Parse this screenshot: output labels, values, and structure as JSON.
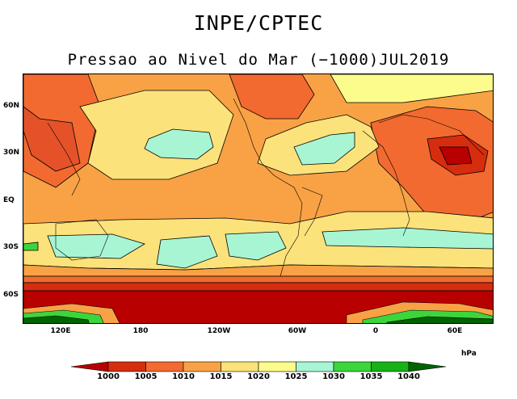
{
  "header": {
    "title": "INPE/CPTEC",
    "subtitle": "Pressao ao Nivel do Mar (−1000)JUL2019"
  },
  "axes": {
    "lat_labels": [
      "60N",
      "30N",
      "EQ",
      "30S",
      "60S"
    ],
    "lon_labels": [
      "120E",
      "180",
      "120W",
      "60W",
      "0",
      "60E"
    ]
  },
  "colorbar": {
    "unit": "hPa",
    "levels": [
      "1000",
      "1005",
      "1010",
      "1015",
      "1020",
      "1025",
      "1030",
      "1035",
      "1040"
    ],
    "colors": [
      "#b80000",
      "#d62d0f",
      "#f26a30",
      "#f8a245",
      "#fce27a",
      "#fcfc8c",
      "#a8f5d4",
      "#3cd53c",
      "#16b216",
      "#0a8c0a",
      "#006400"
    ]
  }
}
